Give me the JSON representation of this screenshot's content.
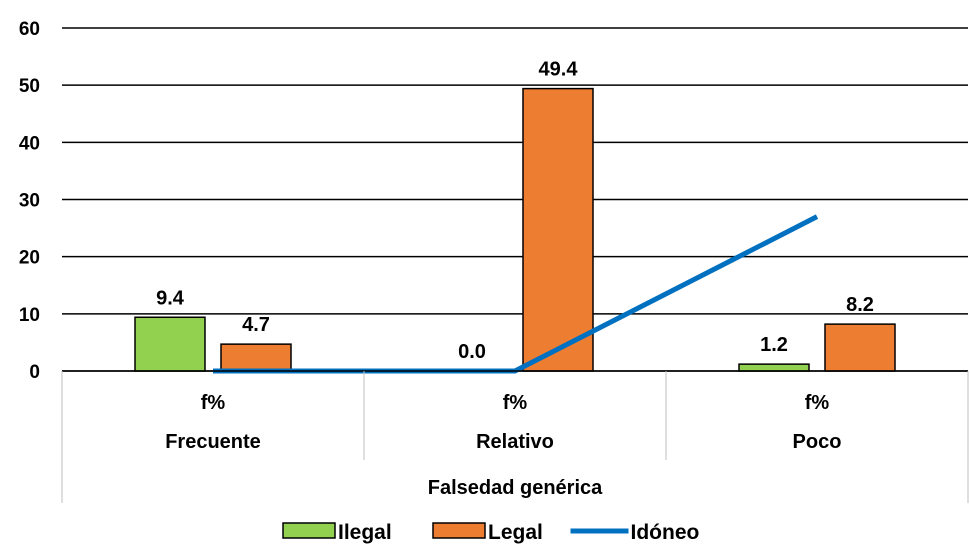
{
  "chart_data": {
    "type": "bar",
    "categories": [
      "Frecuente",
      "Relativo",
      "Poco"
    ],
    "subcategory": "f%",
    "group_label": "Falsedad genérica",
    "ylim": [
      0,
      60
    ],
    "yticks": [
      "0",
      "10",
      "20",
      "30",
      "40",
      "50",
      "60"
    ],
    "grid": true,
    "legend_position": "bottom",
    "series": [
      {
        "name": "Ilegal",
        "type": "bar",
        "color": "#92d050",
        "values": [
          9.4,
          0.0,
          1.2
        ],
        "labels": [
          "9.4",
          "0.0",
          "1.2"
        ]
      },
      {
        "name": "Legal",
        "type": "bar",
        "color": "#ed7d31",
        "values": [
          4.7,
          49.4,
          8.2
        ],
        "labels": [
          "4.7",
          "49.4",
          "8.2"
        ]
      },
      {
        "name": "Idóneo",
        "type": "line",
        "color": "#0070c0",
        "values": [
          0,
          0,
          27
        ]
      }
    ]
  }
}
